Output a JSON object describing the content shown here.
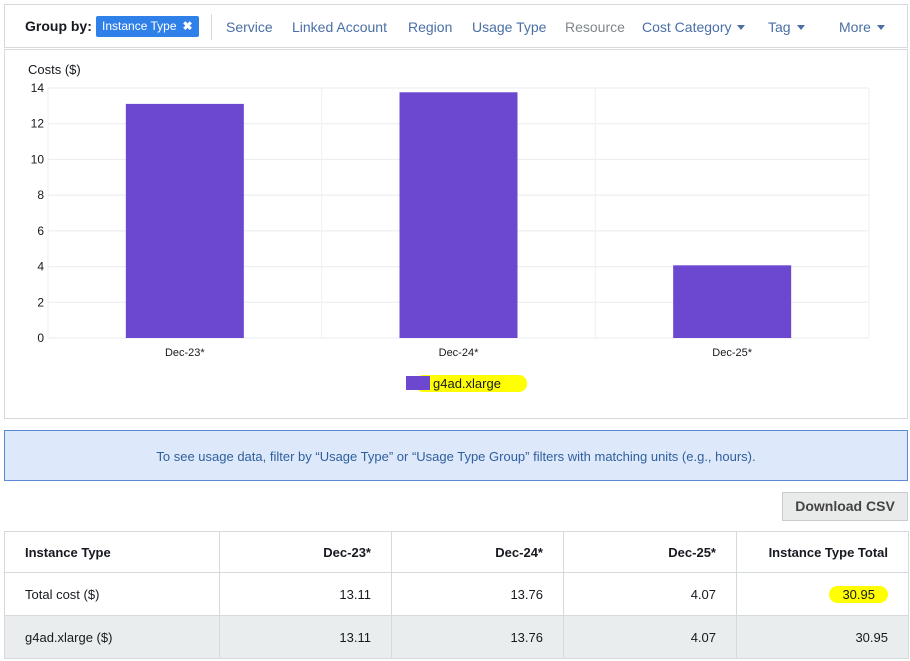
{
  "group_by": {
    "label": "Group by:",
    "selected_chip": "Instance Type",
    "options": [
      "Service",
      "Linked Account",
      "Region",
      "Usage Type",
      "Resource",
      "Cost Category",
      "Tag",
      "More"
    ]
  },
  "chart_data": {
    "type": "bar",
    "ylabel": "Costs ($)",
    "categories": [
      "Dec-23*",
      "Dec-24*",
      "Dec-25*"
    ],
    "series": [
      {
        "name": "g4ad.xlarge",
        "values": [
          13.11,
          13.76,
          4.07
        ],
        "color": "#6c47d0"
      }
    ],
    "ylim": [
      0,
      14
    ],
    "yticks": [
      0,
      2,
      4,
      6,
      8,
      10,
      12,
      14
    ],
    "grid": true,
    "legend": "bottom-center",
    "legend_highlight_color": "#ffff00"
  },
  "info_banner": "To see usage data, filter by “Usage Type” or “Usage Type Group” filters with matching units (e.g., hours).",
  "download_button": "Download CSV",
  "table": {
    "headers": [
      "Instance Type",
      "Dec-23*",
      "Dec-24*",
      "Dec-25*",
      "Instance Type Total"
    ],
    "rows": [
      [
        "Total cost ($)",
        "13.11",
        "13.76",
        "4.07",
        "30.95"
      ],
      [
        "g4ad.xlarge ($)",
        "13.11",
        "13.76",
        "4.07",
        "30.95"
      ]
    ]
  },
  "colors": {
    "accent": "#2f80e8",
    "link": "#4a6fa5",
    "bar": "#6c47d0",
    "highlight": "#ffff00"
  }
}
